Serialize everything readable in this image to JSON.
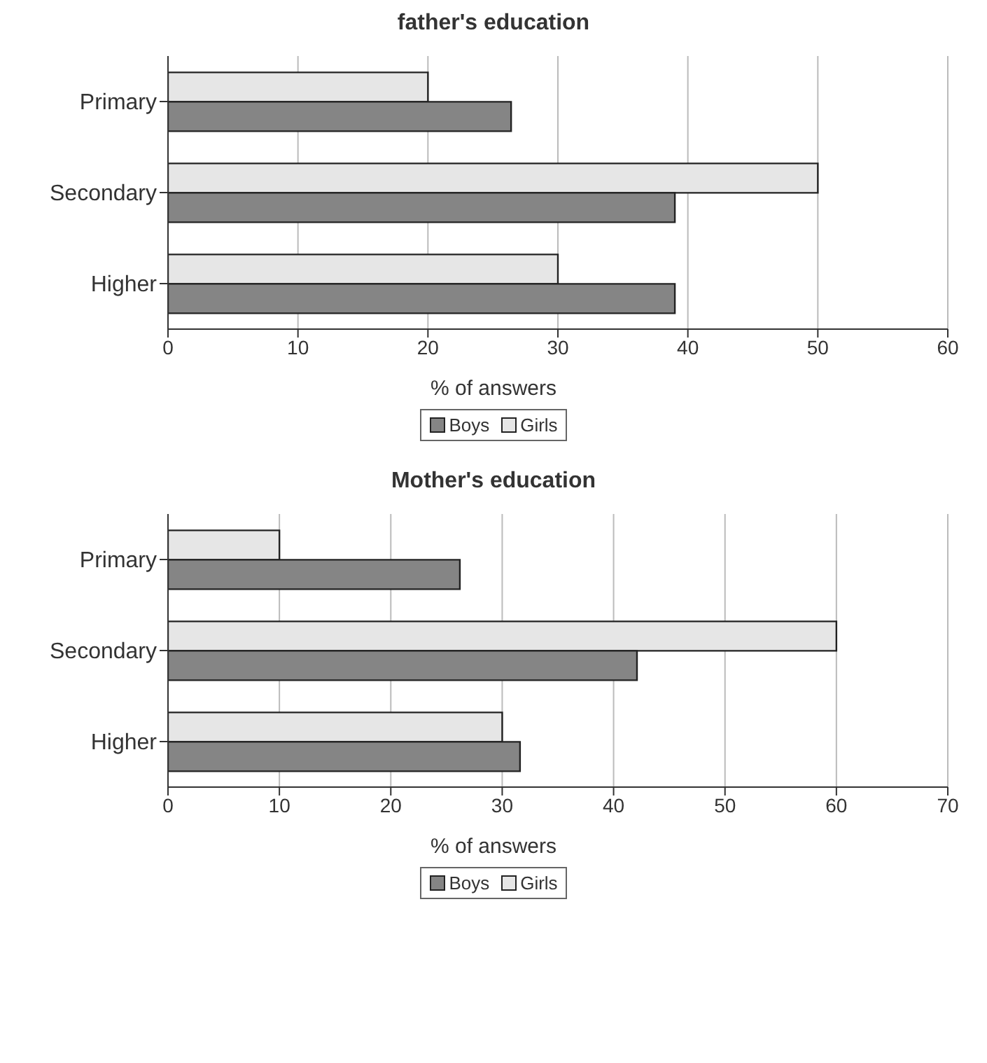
{
  "chart_data": [
    {
      "type": "bar",
      "orientation": "horizontal",
      "title": "father's education",
      "xlabel": "% of answers",
      "categories": [
        "Primary",
        "Secondary",
        "Higher"
      ],
      "xlim": [
        0,
        60
      ],
      "xticks": [
        0,
        10,
        20,
        30,
        40,
        50,
        60
      ],
      "grid": "x",
      "legend": "bottom",
      "series": [
        {
          "name": "Boys",
          "color": "#858585",
          "values": [
            26.4,
            39,
            39
          ]
        },
        {
          "name": "Girls",
          "color": "#e6e6e6",
          "values": [
            20,
            50,
            30
          ]
        }
      ]
    },
    {
      "type": "bar",
      "orientation": "horizontal",
      "title": "Mother's education",
      "xlabel": "% of answers",
      "categories": [
        "Primary",
        "Secondary",
        "Higher"
      ],
      "xlim": [
        0,
        70
      ],
      "xticks": [
        0,
        10,
        20,
        30,
        40,
        50,
        60,
        70
      ],
      "grid": "x",
      "legend": "bottom",
      "series": [
        {
          "name": "Boys",
          "color": "#858585",
          "values": [
            26.2,
            42.1,
            31.6
          ]
        },
        {
          "name": "Girls",
          "color": "#e6e6e6",
          "values": [
            10,
            60,
            30
          ]
        }
      ]
    }
  ]
}
